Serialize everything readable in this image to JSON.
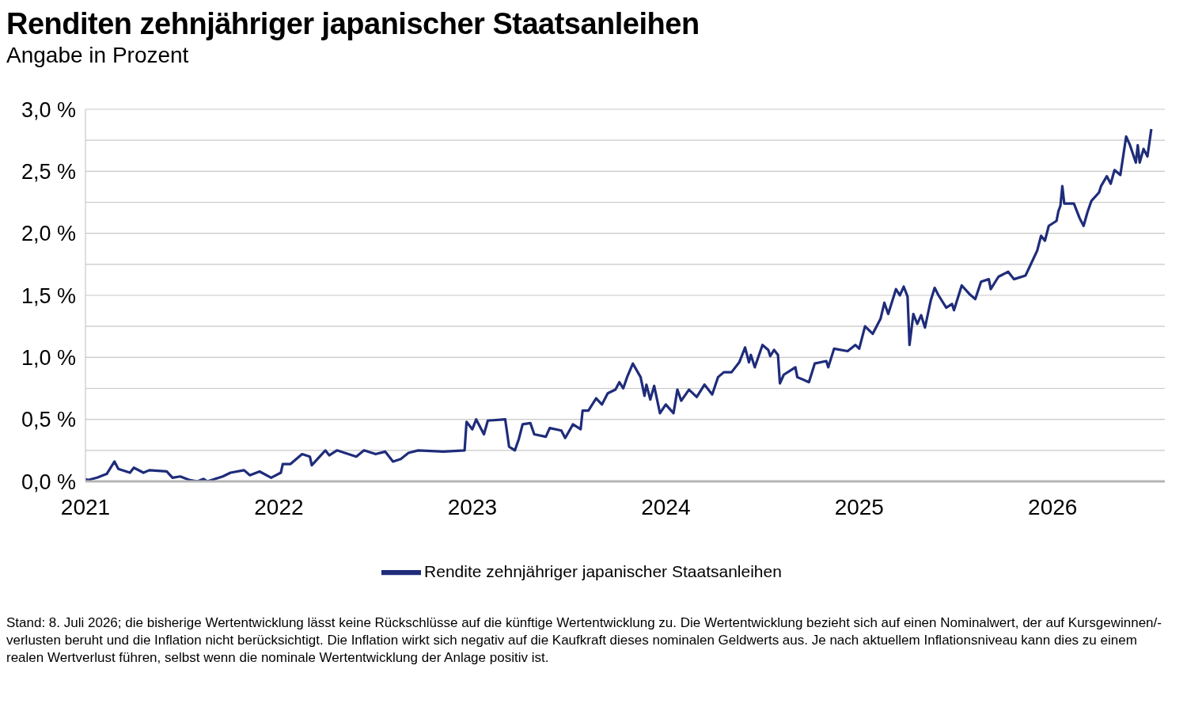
{
  "chart_data": {
    "type": "line",
    "title": "Renditen zehnjähriger japanischer Staatsanleihen",
    "subtitle": "Angabe in Prozent",
    "x": [
      2021.0,
      2021.01,
      2021.06,
      2021.11,
      2021.15,
      2021.17,
      2021.23,
      2021.25,
      2021.3,
      2021.33,
      2021.42,
      2021.45,
      2021.49,
      2021.54,
      2021.58,
      2021.61,
      2021.63,
      2021.71,
      2021.75,
      2021.82,
      2021.85,
      2021.9,
      2021.96,
      2022.01,
      2022.02,
      2022.06,
      2022.12,
      2022.16,
      2022.17,
      2022.24,
      2022.26,
      2022.3,
      2022.4,
      2022.44,
      2022.5,
      2022.55,
      2022.59,
      2022.63,
      2022.67,
      2022.72,
      2022.85,
      2022.96,
      2022.97,
      2023.0,
      2023.02,
      2023.06,
      2023.08,
      2023.17,
      2023.19,
      2023.22,
      2023.24,
      2023.26,
      2023.3,
      2023.32,
      2023.38,
      2023.4,
      2023.46,
      2023.48,
      2023.52,
      2023.56,
      2023.57,
      2023.6,
      2023.64,
      2023.67,
      2023.7,
      2023.74,
      2023.76,
      2023.78,
      2023.8,
      2023.83,
      2023.87,
      2023.89,
      2023.9,
      2023.92,
      2023.94,
      2023.97,
      2024.0,
      2024.04,
      2024.06,
      2024.08,
      2024.12,
      2024.16,
      2024.2,
      2024.24,
      2024.27,
      2024.3,
      2024.34,
      2024.38,
      2024.41,
      2024.43,
      2024.44,
      2024.46,
      2024.5,
      2024.53,
      2024.54,
      2024.56,
      2024.58,
      2024.59,
      2024.61,
      2024.64,
      2024.67,
      2024.68,
      2024.74,
      2024.77,
      2024.83,
      2024.84,
      2024.87,
      2024.94,
      2024.98,
      2025.0,
      2025.03,
      2025.07,
      2025.11,
      2025.13,
      2025.15,
      2025.19,
      2025.21,
      2025.23,
      2025.25,
      2025.26,
      2025.28,
      2025.3,
      2025.32,
      2025.34,
      2025.37,
      2025.39,
      2025.41,
      2025.45,
      2025.48,
      2025.49,
      2025.53,
      2025.57,
      2025.6,
      2025.63,
      2025.67,
      2025.68,
      2025.72,
      2025.77,
      2025.8,
      2025.86,
      2025.89,
      2025.92,
      2025.94,
      2025.96,
      2025.98,
      2026.02,
      2026.03,
      2026.04,
      2026.05,
      2026.06,
      2026.11,
      2026.14,
      2026.16,
      2026.18,
      2026.2,
      2026.24,
      2026.25,
      2026.28,
      2026.3,
      2026.32,
      2026.35,
      2026.38,
      2026.4,
      2026.43,
      2026.44,
      2026.45,
      2026.47,
      2026.49,
      2026.51
    ],
    "series": [
      {
        "name": "Rendite zehnjähriger japanischer Staatsanleihen",
        "color": "#1f2c7a",
        "values": [
          0.02,
          0.01,
          0.03,
          0.06,
          0.16,
          0.1,
          0.07,
          0.11,
          0.07,
          0.09,
          0.08,
          0.03,
          0.04,
          0.01,
          0.0,
          0.02,
          0.0,
          0.04,
          0.07,
          0.09,
          0.05,
          0.08,
          0.03,
          0.07,
          0.14,
          0.14,
          0.22,
          0.2,
          0.13,
          0.25,
          0.21,
          0.25,
          0.2,
          0.25,
          0.22,
          0.24,
          0.16,
          0.18,
          0.23,
          0.25,
          0.24,
          0.25,
          0.48,
          0.42,
          0.5,
          0.38,
          0.49,
          0.5,
          0.28,
          0.25,
          0.34,
          0.46,
          0.47,
          0.38,
          0.36,
          0.43,
          0.41,
          0.35,
          0.46,
          0.42,
          0.57,
          0.57,
          0.67,
          0.62,
          0.71,
          0.74,
          0.8,
          0.75,
          0.84,
          0.95,
          0.84,
          0.69,
          0.78,
          0.66,
          0.77,
          0.55,
          0.62,
          0.55,
          0.74,
          0.65,
          0.74,
          0.68,
          0.78,
          0.7,
          0.84,
          0.88,
          0.88,
          0.96,
          1.08,
          0.96,
          1.02,
          0.92,
          1.1,
          1.06,
          1.01,
          1.06,
          1.02,
          0.79,
          0.86,
          0.89,
          0.92,
          0.84,
          0.8,
          0.95,
          0.97,
          0.92,
          1.07,
          1.05,
          1.1,
          1.07,
          1.25,
          1.19,
          1.31,
          1.44,
          1.35,
          1.55,
          1.5,
          1.57,
          1.49,
          1.1,
          1.35,
          1.27,
          1.34,
          1.24,
          1.46,
          1.56,
          1.5,
          1.4,
          1.43,
          1.38,
          1.58,
          1.51,
          1.47,
          1.61,
          1.63,
          1.55,
          1.65,
          1.69,
          1.63,
          1.66,
          1.76,
          1.86,
          1.98,
          1.94,
          2.06,
          2.1,
          2.18,
          2.22,
          2.38,
          2.24,
          2.24,
          2.12,
          2.06,
          2.17,
          2.26,
          2.33,
          2.38,
          2.46,
          2.4,
          2.51,
          2.47,
          2.78,
          2.71,
          2.57,
          2.71,
          2.57,
          2.68,
          2.62,
          2.84
        ]
      }
    ],
    "xlim": [
      2021,
      2026.58
    ],
    "xticks": [
      2021,
      2022,
      2023,
      2024,
      2025,
      2026
    ],
    "ylim": [
      0,
      3
    ],
    "yticks": [
      {
        "value": 0,
        "label": "0,0 %"
      },
      {
        "value": 0.25,
        "label": null
      },
      {
        "value": 0.5,
        "label": "0,5 %"
      },
      {
        "value": 0.75,
        "label": null
      },
      {
        "value": 1,
        "label": "1,0 %"
      },
      {
        "value": 1.25,
        "label": null
      },
      {
        "value": 1.5,
        "label": "1,5 %"
      },
      {
        "value": 1.75,
        "label": null
      },
      {
        "value": 2,
        "label": "2,0 %"
      },
      {
        "value": 2.25,
        "label": null
      },
      {
        "value": 2.5,
        "label": "2,5 %"
      },
      {
        "value": 2.75,
        "label": null
      },
      {
        "value": 3,
        "label": "3,0 %"
      }
    ],
    "grid": "y",
    "legend": "bottom",
    "marker": "none",
    "line_style": "solid",
    "annotations": [
      "Stand: 8. Juli 2026; die bisherige Wertentwicklung lässt keine Rückschlüsse auf die künftige Wertentwicklung zu. Die Wertentwicklung bezieht sich auf einen Nominalwert, der auf Kursgewinnen/-verlusten beruht und die Inflation nicht berücksichtigt. Die Inflation wirkt sich negativ auf die Kaufkraft dieses nominalen Geldwerts aus. Je nach aktuellem Inflationsniveau kann dies zu einem realen Wertverlust führen, selbst wenn die nominale Wertentwicklung der Anlage positiv ist."
    ]
  }
}
